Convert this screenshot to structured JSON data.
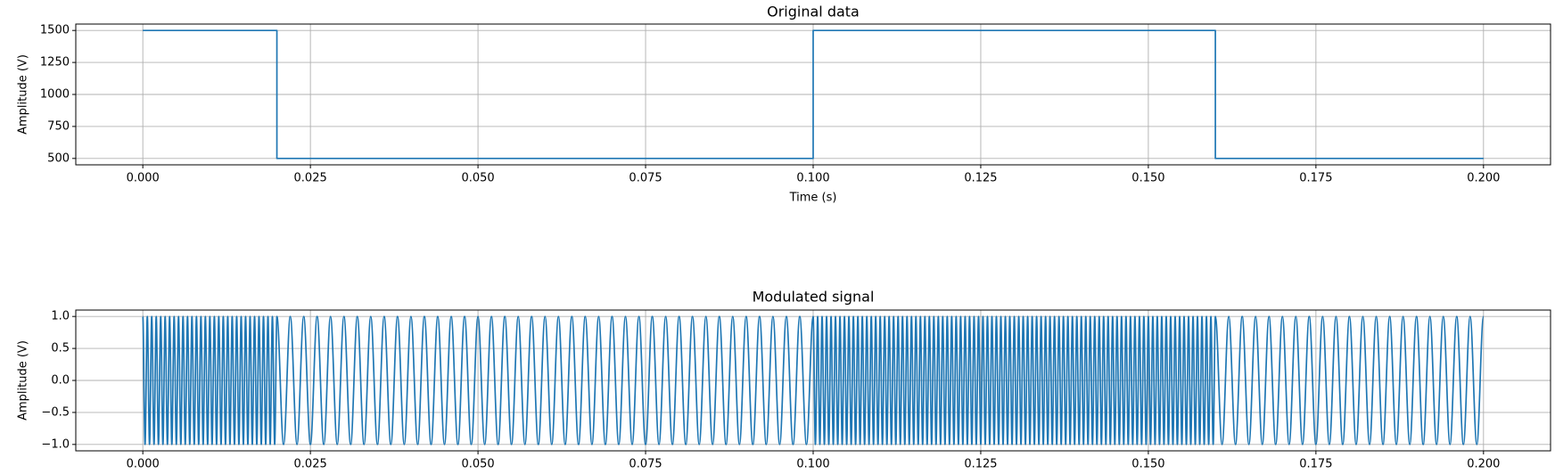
{
  "chart_data": [
    {
      "type": "line",
      "title": "Original data",
      "xlabel": "Time (s)",
      "ylabel": "Amplitude (V)",
      "x": [
        0,
        0.02,
        0.02,
        0.1,
        0.1,
        0.16,
        0.16,
        0.2
      ],
      "values": [
        1500,
        1500,
        500,
        500,
        1500,
        1500,
        500,
        500
      ],
      "color": "#1f77b4",
      "xlim": [
        -0.01,
        0.21
      ],
      "ylim": [
        450,
        1550
      ],
      "xticks": [
        {
          "value": 0,
          "label": "0.000"
        },
        {
          "value": 0.025,
          "label": "0.025"
        },
        {
          "value": 0.05,
          "label": "0.050"
        },
        {
          "value": 0.075,
          "label": "0.075"
        },
        {
          "value": 0.1,
          "label": "0.100"
        },
        {
          "value": 0.125,
          "label": "0.125"
        },
        {
          "value": 0.15,
          "label": "0.150"
        },
        {
          "value": 0.175,
          "label": "0.175"
        },
        {
          "value": 0.2,
          "label": "0.200"
        }
      ],
      "yticks": [
        500,
        750,
        1000,
        1250,
        1500
      ],
      "grid": true
    },
    {
      "type": "line",
      "title": "Modulated signal",
      "xlabel": "Time (s)",
      "ylabel": "Amplitude (V)",
      "x": [
        0,
        0.00033,
        0.00067,
        0.001,
        0.00133,
        0.00167,
        0.002,
        0.00233,
        0.00267,
        0.003,
        0.00333,
        0.00367,
        0.004,
        0.00433,
        0.00467,
        0.005,
        0.00533,
        0.00567,
        0.006,
        0.00633,
        0.00667,
        0.007,
        0.00733,
        0.00767,
        0.008,
        0.00833,
        0.00867,
        0.009,
        0.00933,
        0.00967,
        0.01,
        0.01033,
        0.01067,
        0.011,
        0.01133,
        0.01167,
        0.012,
        0.01233,
        0.01267,
        0.013,
        0.01333,
        0.01367,
        0.014,
        0.01433,
        0.01467,
        0.015,
        0.01533,
        0.01567,
        0.016,
        0.01633,
        0.01667,
        0.017,
        0.01733,
        0.01767,
        0.018,
        0.01833,
        0.01867,
        0.019,
        0.01933,
        0.01967,
        0.02,
        0.021,
        0.022,
        0.023,
        0.024,
        0.025,
        0.026,
        0.027,
        0.028,
        0.029,
        0.03,
        0.031,
        0.032,
        0.033,
        0.034,
        0.035,
        0.036,
        0.037,
        0.038,
        0.039,
        0.04,
        0.041,
        0.042,
        0.043,
        0.044,
        0.045,
        0.046,
        0.047,
        0.048,
        0.049,
        0.05,
        0.051,
        0.052,
        0.053,
        0.054,
        0.055,
        0.056,
        0.057,
        0.058,
        0.059,
        0.06,
        0.061,
        0.062,
        0.063,
        0.064,
        0.065,
        0.066,
        0.067,
        0.068,
        0.069,
        0.07,
        0.071,
        0.072,
        0.073,
        0.074,
        0.075,
        0.076,
        0.077,
        0.078,
        0.079,
        0.08,
        0.081,
        0.082,
        0.083,
        0.084,
        0.085,
        0.086,
        0.087,
        0.088,
        0.089,
        0.09,
        0.091,
        0.092,
        0.093,
        0.094,
        0.095,
        0.096,
        0.097,
        0.098,
        0.099,
        0.1,
        0.10033,
        0.10067,
        0.101,
        0.10133,
        0.10167,
        0.102,
        0.10233,
        0.10267,
        0.103,
        0.10333,
        0.10367,
        0.104,
        0.10433,
        0.10467,
        0.105,
        0.10533,
        0.10567,
        0.106,
        0.10633,
        0.10667,
        0.107,
        0.10733,
        0.10767,
        0.108,
        0.10833,
        0.10867,
        0.109,
        0.10933,
        0.10967,
        0.11,
        0.11033,
        0.11067,
        0.111,
        0.11133,
        0.11167,
        0.112,
        0.11233,
        0.11267,
        0.113,
        0.11333,
        0.11367,
        0.114,
        0.11433,
        0.11467,
        0.115,
        0.11533,
        0.11567,
        0.116,
        0.11633,
        0.11667,
        0.117,
        0.11733,
        0.11767,
        0.118,
        0.11833,
        0.11867,
        0.119,
        0.11933,
        0.11967,
        0.12,
        0.12033,
        0.12067,
        0.121,
        0.12133,
        0.12167,
        0.122,
        0.12233,
        0.12267,
        0.123,
        0.12333,
        0.12367,
        0.124,
        0.12433,
        0.12467,
        0.125,
        0.12533,
        0.12567,
        0.126,
        0.12633,
        0.12667,
        0.127,
        0.12733,
        0.12767,
        0.128,
        0.12833,
        0.12867,
        0.129,
        0.12933,
        0.12967,
        0.13,
        0.13033,
        0.13067,
        0.131,
        0.13133,
        0.13167,
        0.132,
        0.13233,
        0.13267,
        0.133,
        0.13333,
        0.13367,
        0.134,
        0.13433,
        0.13467,
        0.135,
        0.13533,
        0.13567,
        0.136,
        0.13633,
        0.13667,
        0.137,
        0.13733,
        0.13767,
        0.138,
        0.13833,
        0.13867,
        0.139,
        0.13933,
        0.13967,
        0.14,
        0.14033,
        0.14067,
        0.141,
        0.14133,
        0.14167,
        0.142,
        0.14233,
        0.14267,
        0.143,
        0.14333,
        0.14367,
        0.144,
        0.14433,
        0.14467,
        0.145,
        0.14533,
        0.14567,
        0.146,
        0.14633,
        0.14667,
        0.147,
        0.14733,
        0.14767,
        0.148,
        0.14833,
        0.14867,
        0.149,
        0.14933,
        0.14967,
        0.15,
        0.15033,
        0.15067,
        0.151,
        0.15133,
        0.15167,
        0.152,
        0.15233,
        0.15267,
        0.153,
        0.15333,
        0.15367,
        0.154,
        0.15433,
        0.15467,
        0.155,
        0.15533,
        0.15567,
        0.156,
        0.15633,
        0.15667,
        0.157,
        0.15733,
        0.15767,
        0.158,
        0.15833,
        0.15867,
        0.159,
        0.15933,
        0.15967,
        0.16,
        0.161,
        0.162,
        0.163,
        0.164,
        0.165,
        0.166,
        0.167,
        0.168,
        0.169,
        0.17,
        0.171,
        0.172,
        0.173,
        0.174,
        0.175,
        0.176,
        0.177,
        0.178,
        0.179,
        0.18,
        0.181,
        0.182,
        0.183,
        0.184,
        0.185,
        0.186,
        0.187,
        0.188,
        0.189,
        0.19,
        0.191,
        0.192,
        0.193,
        0.194,
        0.195,
        0.196,
        0.197,
        0.198,
        0.199,
        0.2
      ],
      "values": [
        1,
        -1,
        1,
        -1,
        1,
        -1,
        1,
        -1,
        1,
        -1,
        1,
        -1,
        1,
        -1,
        1,
        -1,
        1,
        -1,
        1,
        -1,
        1,
        -1,
        1,
        -1,
        1,
        -1,
        1,
        -1,
        1,
        -1,
        1,
        -1,
        1,
        -1,
        1,
        -1,
        1,
        -1,
        1,
        -1,
        1,
        -1,
        1,
        -1,
        1,
        -1,
        1,
        -1,
        1,
        -1,
        1,
        -1,
        1,
        -1,
        1,
        -1,
        1,
        -1,
        1,
        -1,
        1,
        -1,
        1,
        -1,
        1,
        -1,
        1,
        -1,
        1,
        -1,
        1,
        -1,
        1,
        -1,
        1,
        -1,
        1,
        -1,
        1,
        -1,
        1,
        -1,
        1,
        -1,
        1,
        -1,
        1,
        -1,
        1,
        -1,
        1,
        -1,
        1,
        -1,
        1,
        -1,
        1,
        -1,
        1,
        -1,
        1,
        -1,
        1,
        -1,
        1,
        -1,
        1,
        -1,
        1,
        -1,
        1,
        -1,
        1,
        -1,
        1,
        -1,
        1,
        -1,
        1,
        -1,
        1,
        -1,
        1,
        -1,
        1,
        -1,
        1,
        -1,
        1,
        -1,
        1,
        -1,
        1,
        -1,
        1,
        -1,
        1,
        -1,
        1,
        -1,
        1,
        -1,
        1,
        -1,
        1,
        -1,
        1,
        -1,
        1,
        -1,
        1,
        -1,
        1,
        -1,
        1,
        -1,
        1,
        -1,
        1,
        -1,
        1,
        -1,
        1,
        -1,
        1,
        -1,
        1,
        -1,
        1,
        -1,
        1,
        -1,
        1,
        -1,
        1,
        -1,
        1,
        -1,
        1,
        -1,
        1,
        -1,
        1,
        -1,
        1,
        -1,
        1,
        -1,
        1,
        -1,
        1,
        -1,
        1,
        -1,
        1,
        -1,
        1,
        -1,
        1,
        -1,
        1,
        -1,
        1,
        -1,
        1,
        -1,
        1,
        -1,
        1,
        -1,
        1,
        -1,
        1,
        -1,
        1,
        -1,
        1,
        -1,
        1,
        -1,
        1,
        -1,
        1,
        -1,
        1,
        -1,
        1,
        -1,
        1,
        -1,
        1,
        -1,
        1,
        -1,
        1,
        -1,
        1,
        -1,
        1,
        -1,
        1,
        -1,
        1,
        -1,
        1,
        -1,
        1,
        -1,
        1,
        -1,
        1,
        -1,
        1,
        -1,
        1,
        -1,
        1,
        -1,
        1,
        -1,
        1,
        -1,
        1,
        -1,
        1,
        -1,
        1,
        -1,
        1,
        -1,
        1,
        -1,
        1,
        -1,
        1,
        -1,
        1,
        -1,
        1,
        -1,
        1,
        -1,
        1,
        -1,
        1,
        -1,
        1,
        -1,
        1,
        -1,
        1,
        -1,
        1,
        -1,
        1,
        -1,
        1,
        -1,
        1,
        -1,
        1,
        -1,
        1,
        -1,
        1,
        -1,
        1,
        -1,
        1,
        -1,
        1,
        -1,
        1,
        -1,
        1,
        -1,
        1,
        -1,
        1,
        -1,
        1,
        -1,
        1,
        -1,
        1,
        -1,
        1,
        -1,
        1,
        -1,
        1,
        -1,
        1,
        -1,
        1,
        -1,
        1,
        -1,
        1,
        -1,
        1,
        -1,
        1,
        -1,
        1,
        -1,
        1,
        -1,
        1,
        -1,
        1,
        -1,
        1,
        -1,
        1,
        -1,
        1,
        -1,
        1,
        -1,
        1
      ],
      "color": "#1f77b4",
      "smooth": true,
      "xlim": [
        -0.01,
        0.21
      ],
      "ylim": [
        -1.1,
        1.1
      ],
      "xticks": [
        {
          "value": 0,
          "label": "0.000"
        },
        {
          "value": 0.025,
          "label": "0.025"
        },
        {
          "value": 0.05,
          "label": "0.050"
        },
        {
          "value": 0.075,
          "label": "0.075"
        },
        {
          "value": 0.1,
          "label": "0.100"
        },
        {
          "value": 0.125,
          "label": "0.125"
        },
        {
          "value": 0.15,
          "label": "0.150"
        },
        {
          "value": 0.175,
          "label": "0.175"
        },
        {
          "value": 0.2,
          "label": "0.200"
        }
      ],
      "yticks": [
        {
          "value": 1,
          "label": "1.0"
        },
        {
          "value": 0.5,
          "label": "0.5"
        },
        {
          "value": 0,
          "label": "0.0"
        },
        {
          "value": -0.5,
          "label": "−0.5"
        },
        {
          "value": -1,
          "label": "−1.0"
        }
      ],
      "grid": true
    }
  ]
}
